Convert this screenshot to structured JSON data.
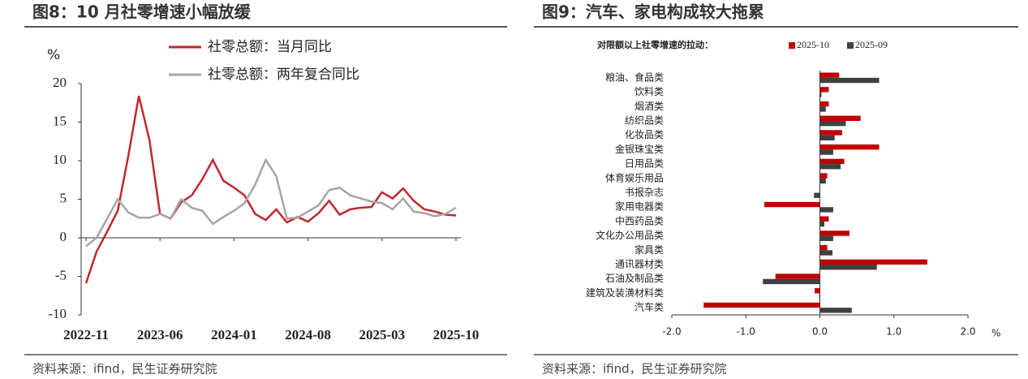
{
  "chart_data": [
    {
      "type": "line",
      "title": "图8：10 月社零增速小幅放缓",
      "source": "资料来源：ifind，民生证券研究院",
      "y_label": "%",
      "categories": [
        "2022-11",
        null,
        null,
        null,
        null,
        null,
        null,
        "2023-06",
        null,
        null,
        null,
        null,
        null,
        null,
        "2024-01",
        null,
        null,
        null,
        null,
        null,
        null,
        "2024-08",
        null,
        null,
        null,
        null,
        null,
        null,
        "2025-03",
        null,
        null,
        null,
        null,
        null,
        null,
        "2025-10"
      ],
      "series": [
        {
          "name": "社零总额：当月同比",
          "color": "#c0282d",
          "values": [
            -5.9,
            -1.8,
            0.8,
            3.5,
            10.6,
            18.4,
            12.7,
            3.1,
            2.5,
            4.6,
            5.5,
            7.6,
            10.1,
            7.4,
            6.5,
            5.5,
            3.1,
            2.3,
            3.7,
            2.0,
            2.7,
            2.1,
            3.2,
            4.8,
            3.0,
            3.7,
            3.9,
            4.0,
            5.9,
            5.1,
            6.4,
            4.8,
            3.7,
            3.4,
            3.0,
            2.9
          ]
        },
        {
          "name": "社零总额：两年复合同比",
          "color": "#a6a6a6",
          "values": [
            -1.1,
            0.0,
            2.5,
            5.0,
            3.3,
            2.6,
            2.6,
            3.1,
            2.5,
            5.0,
            3.9,
            3.5,
            1.8,
            2.7,
            3.5,
            4.5,
            6.9,
            10.1,
            8.0,
            2.5,
            2.6,
            3.4,
            4.2,
            6.2,
            6.5,
            5.5,
            5.1,
            4.7,
            4.5,
            3.7,
            5.1,
            3.4,
            3.2,
            2.8,
            3.1,
            3.9
          ]
        }
      ],
      "ylim": [
        -10,
        20
      ],
      "yticks": [
        -10,
        -5,
        0,
        5,
        10,
        15,
        20
      ]
    },
    {
      "type": "hbar",
      "title": "图9：汽车、家电构成较大拖累",
      "source": "资料来源：ifind，民生证券研究院",
      "legend_title": "对限额以上社零增速的拉动：",
      "x_label": "%",
      "categories": [
        "粮油、食品类",
        "饮料类",
        "烟酒类",
        "纺织品类",
        "化妆品类",
        "金银珠宝类",
        "日用品类",
        "体育娱乐用品",
        "书报杂志",
        "家用电器类",
        "中西药品类",
        "文化办公用品类",
        "家具类",
        "通讯器材类",
        "石油及制品类",
        "建筑及装潢材料类",
        "汽车类"
      ],
      "series": [
        {
          "name": "2025-10",
          "color": "#c00000",
          "values": [
            0.26,
            0.12,
            0.12,
            0.55,
            0.3,
            0.8,
            0.33,
            0.1,
            0.0,
            -0.75,
            0.12,
            0.4,
            0.1,
            1.45,
            -0.6,
            -0.07,
            -1.57
          ]
        },
        {
          "name": "2025-09",
          "color": "#404040",
          "values": [
            0.8,
            0.02,
            0.08,
            0.35,
            0.2,
            0.18,
            0.28,
            0.08,
            -0.08,
            0.18,
            0.06,
            0.18,
            0.17,
            0.77,
            -0.77,
            -0.01,
            0.43
          ]
        }
      ],
      "xlim": [
        -2,
        2
      ],
      "xticks": [
        {
          "value": -2,
          "label": "-2.0"
        },
        {
          "value": -1,
          "label": "-1.0"
        },
        {
          "value": 0,
          "label": "0.0"
        },
        {
          "value": 1,
          "label": "1.0"
        },
        {
          "value": 2,
          "label": "2.0"
        }
      ]
    }
  ]
}
